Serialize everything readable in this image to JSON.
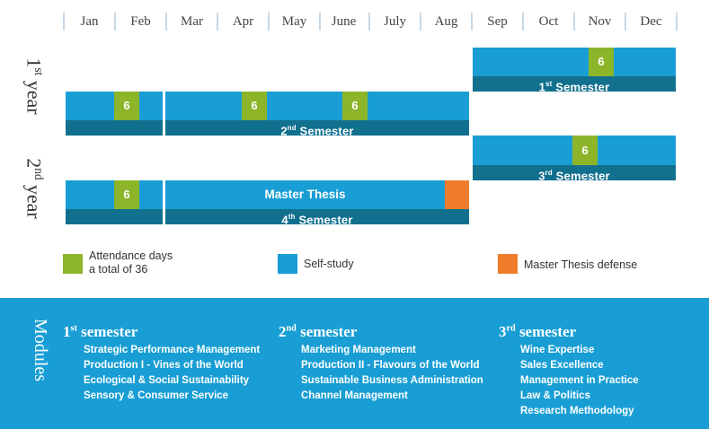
{
  "months": [
    "Jan",
    "Feb",
    "Mar",
    "Apr",
    "May",
    "June",
    "July",
    "Aug",
    "Sep",
    "Oct",
    "Nov",
    "Dec"
  ],
  "years": {
    "first": {
      "num": "1",
      "sup": "st",
      "word": "year"
    },
    "second": {
      "num": "2",
      "sup": "nd",
      "word": "year"
    }
  },
  "semesters": {
    "s1": {
      "num": "1",
      "sup": "st",
      "word": "Semester"
    },
    "s2": {
      "num": "2",
      "sup": "nd",
      "word": "Semester"
    },
    "s3": {
      "num": "3",
      "sup": "rd",
      "word": "Semester"
    },
    "s4": {
      "num": "4",
      "sup": "th",
      "word": "Semester"
    }
  },
  "attendance_value": "6",
  "master_thesis": "Master Thesis",
  "legend": {
    "attendance_line1": "Attendance days",
    "attendance_line2": "a total of 36",
    "self_study": "Self-study",
    "defense": "Master Thesis defense"
  },
  "colors": {
    "self_study": "#189ed4",
    "semester_band": "#12708f",
    "attendance": "#8db52a",
    "defense": "#ef7d2c"
  },
  "modules": {
    "title": "Modules",
    "col1": {
      "num": "1",
      "sup": "st",
      "word": "semester",
      "items": [
        "Strategic Performance Management",
        "Production I - Vines of the World",
        "Ecological & Social Sustainability",
        "Sensory & Consumer Service"
      ]
    },
    "col2": {
      "num": "2",
      "sup": "nd",
      "word": "semester",
      "items": [
        "Marketing Management",
        "Production II - Flavours of the World",
        "Sustainable Business Administration",
        "Channel Management"
      ]
    },
    "col3": {
      "num": "3",
      "sup": "rd",
      "word": "semester",
      "items": [
        "Wine Expertise",
        "Sales Excellence",
        "Management in Practice",
        "Law & Politics",
        "Research Methodology"
      ]
    }
  }
}
